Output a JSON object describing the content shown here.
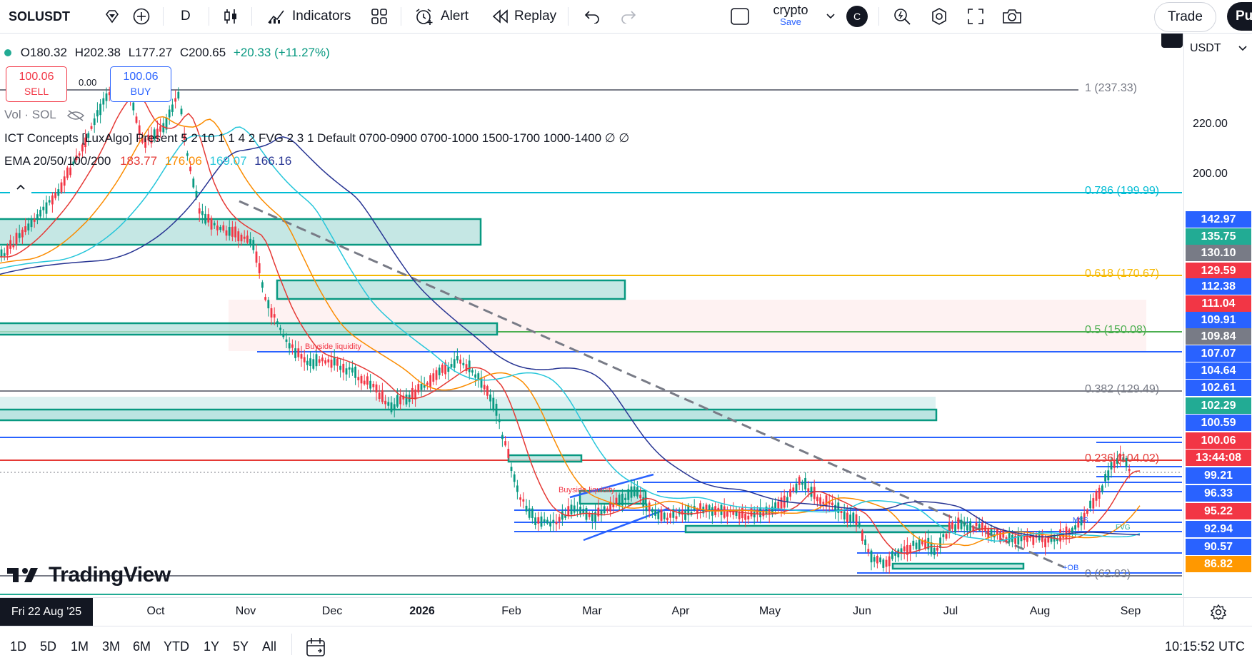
{
  "toolbar": {
    "symbol": "SOLUSDT",
    "interval": "D",
    "indicators_label": "Indicators",
    "alert_label": "Alert",
    "replay_label": "Replay",
    "layout_name": "crypto",
    "layout_save": "Save",
    "avatar_letter": "C",
    "trade_label": "Trade",
    "publish_label": "Pu"
  },
  "legend": {
    "ohlc": {
      "o": "O180.32",
      "h": "H202.38",
      "l": "L177.27",
      "c": "C200.65",
      "chg": "+20.33 (+11.27%)"
    },
    "sell": {
      "price": "100.06",
      "label": "SELL"
    },
    "spread": "0.00",
    "buy": {
      "price": "100.06",
      "label": "BUY"
    },
    "vol": "Vol · SOL",
    "ict": "ICT Concepts [LuxAlgo] Present 5 2 10 1 1 4 2 FVG 2 3 1 Default 0700-0900 0700-1000 1500-1700 1000-1400 ∅ ∅",
    "ema_label": "EMA 20/50/100/200",
    "ema_values": [
      "183.77",
      "176.06",
      "169.07",
      "166.16"
    ],
    "ema_colors": [
      "#e53935",
      "#fb8c00",
      "#26c6da",
      "#283593"
    ]
  },
  "annotations": {
    "buyside1": "Buyside liquidity",
    "buyside2": "Buyside liquidity",
    "mss": "MSS",
    "fvg": "FVG",
    "ob": "+OB",
    "watermark": "TradingView"
  },
  "fib": [
    {
      "label": "1 (237.33)",
      "color": "#787b86"
    },
    {
      "label": "0.786 (199.99)",
      "color": "#00bcd4"
    },
    {
      "label": "0.618 (170.67)",
      "color": "#f5b800"
    },
    {
      "label": "0.5 (150.08)",
      "color": "#4caf50"
    },
    {
      "label": "0.382 (129.49)",
      "color": "#787b86"
    },
    {
      "label": "0.236 (104.02)",
      "color": "#e53935"
    },
    {
      "label": "0 (62.83)",
      "color": "#787b86"
    }
  ],
  "price_axis": {
    "currency": "USDT",
    "plain_labels": [
      "220.00",
      "200.00"
    ],
    "tags": [
      {
        "value": "142.97",
        "bg": "#2962ff"
      },
      {
        "value": "135.75",
        "bg": "#22ab94"
      },
      {
        "value": "130.10",
        "bg": "#787b86"
      },
      {
        "value": "129.59",
        "bg": "#f23645"
      },
      {
        "value": "112.38",
        "bg": "#2962ff"
      },
      {
        "value": "111.04",
        "bg": "#f23645"
      },
      {
        "value": "109.91",
        "bg": "#2962ff"
      },
      {
        "value": "109.84",
        "bg": "#787b86"
      },
      {
        "value": "107.07",
        "bg": "#2962ff"
      },
      {
        "value": "104.64",
        "bg": "#2962ff"
      },
      {
        "value": "102.61",
        "bg": "#2962ff"
      },
      {
        "value": "102.29",
        "bg": "#22ab94"
      },
      {
        "value": "100.59",
        "bg": "#2962ff"
      },
      {
        "value": "100.06",
        "bg": "#f23645"
      },
      {
        "value": "13:44:08",
        "bg": "#f23645"
      },
      {
        "value": "99.21",
        "bg": "#2962ff"
      },
      {
        "value": "96.33",
        "bg": "#2962ff"
      },
      {
        "value": "95.22",
        "bg": "#f23645"
      },
      {
        "value": "92.94",
        "bg": "#2962ff"
      },
      {
        "value": "90.57",
        "bg": "#2962ff"
      },
      {
        "value": "86.82",
        "bg": "#ff9800"
      }
    ]
  },
  "time_axis": {
    "cursor_date": "Fri 22 Aug '25",
    "labels": [
      "Oct",
      "Nov",
      "Dec",
      "2026",
      "Feb",
      "Mar",
      "Apr",
      "May",
      "Jun",
      "Jul",
      "Aug",
      "Sep"
    ]
  },
  "bottom": {
    "ranges": [
      "1D",
      "5D",
      "1M",
      "3M",
      "6M",
      "YTD",
      "1Y",
      "5Y",
      "All"
    ],
    "clock": "10:15:52 UTC"
  }
}
